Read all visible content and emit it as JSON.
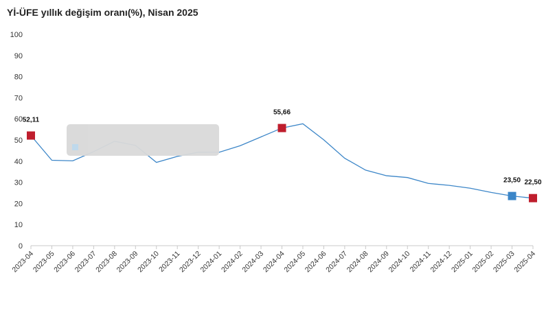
{
  "chart_data": {
    "type": "line",
    "title": "Yİ-ÜFE yıllık değişim oranı(%), Nisan 2025",
    "xlabel": "",
    "ylabel": "",
    "ylim": [
      0,
      100
    ],
    "yticks": [
      0,
      10,
      20,
      30,
      40,
      50,
      60,
      70,
      80,
      90,
      100
    ],
    "grid": false,
    "legend": "none",
    "categories": [
      "2023-04",
      "2023-05",
      "2023-06",
      "2023-07",
      "2023-08",
      "2023-09",
      "2023-10",
      "2023-11",
      "2023-12",
      "2024-01",
      "2024-02",
      "2024-03",
      "2024-04",
      "2024-05",
      "2024-06",
      "2024-07",
      "2024-08",
      "2024-09",
      "2024-10",
      "2024-11",
      "2024-12",
      "2025-01",
      "2025-02",
      "2025-03",
      "2025-04"
    ],
    "series": [
      {
        "color": "#3c86c8",
        "values": [
          52.11,
          40.42,
          40.14,
          44.5,
          49.41,
          47.44,
          39.39,
          42.25,
          44.22,
          44.2,
          47.29,
          51.47,
          55.66,
          57.68,
          50.09,
          41.37,
          35.75,
          33.09,
          32.24,
          29.47,
          28.52,
          27.2,
          25.21,
          23.5,
          22.5
        ]
      }
    ],
    "highlighted_points": [
      {
        "category": "2023-04",
        "value": 52.11,
        "label": "52,11",
        "color": "#bf1e2d"
      },
      {
        "category": "2024-04",
        "value": 55.66,
        "label": "55,66",
        "color": "#bf1e2d"
      },
      {
        "category": "2025-03",
        "value": 23.5,
        "label": "23,50",
        "color": "#3c86c8"
      },
      {
        "category": "2025-04",
        "value": 22.5,
        "label": "22,50",
        "color": "#bf1e2d"
      }
    ],
    "axis_color": "#c8c8c8"
  }
}
